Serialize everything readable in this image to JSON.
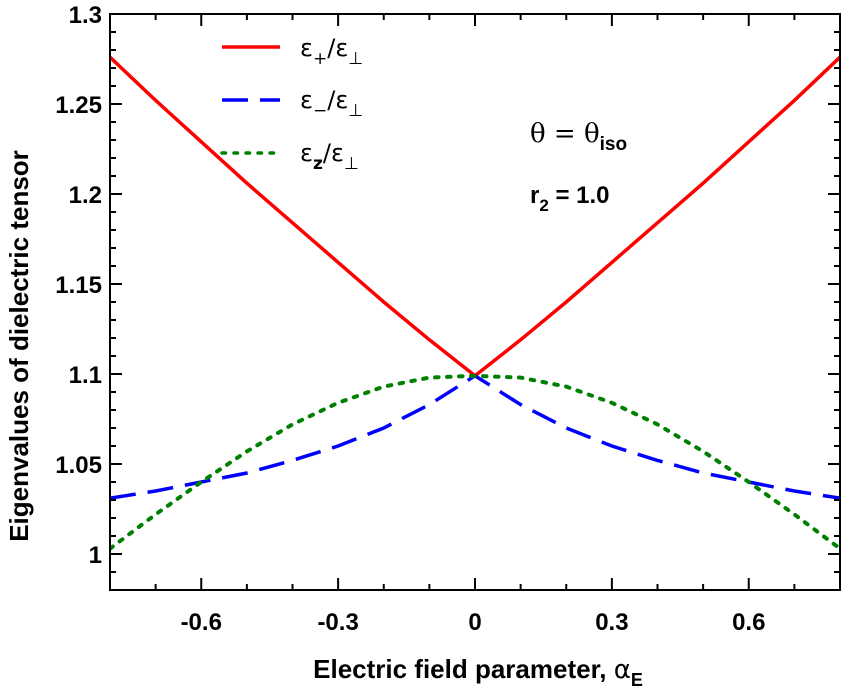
{
  "chart_data": {
    "type": "line",
    "title": "",
    "xlabel": "Electric field parameter, ",
    "xlabel_symbol": "α",
    "xlabel_sub": "E",
    "ylabel": "Eigenvalues of dielectric tensor",
    "xlim": [
      -0.8,
      0.8
    ],
    "ylim": [
      0.98,
      1.3
    ],
    "xticks": [
      -0.6,
      -0.3,
      0,
      0.3,
      0.6
    ],
    "xtick_labels": [
      "-0.6",
      "-0.3",
      "0",
      "0.3",
      "0.6"
    ],
    "yticks": [
      1.0,
      1.05,
      1.1,
      1.15,
      1.2,
      1.25,
      1.3
    ],
    "ytick_labels": [
      "1",
      "1.05",
      "1.1",
      "1.15",
      "1.2",
      "1.25",
      "1.3"
    ],
    "grid": false,
    "legend_position": "top-left",
    "series": [
      {
        "name": "ε+/ε⊥",
        "legend_base": "ε",
        "legend_sub": "+",
        "legend_rest": "/ε",
        "legend_sub2": "⊥",
        "color": "#ff0000",
        "style": "solid",
        "x": [
          -0.8,
          -0.7,
          -0.6,
          -0.5,
          -0.4,
          -0.3,
          -0.2,
          -0.1,
          0.0,
          0.1,
          0.2,
          0.3,
          0.4,
          0.5,
          0.6,
          0.7,
          0.8
        ],
        "y": [
          1.276,
          1.252,
          1.229,
          1.206,
          1.184,
          1.162,
          1.14,
          1.119,
          1.099,
          1.119,
          1.14,
          1.162,
          1.184,
          1.206,
          1.229,
          1.252,
          1.276
        ]
      },
      {
        "name": "ε−/ε⊥",
        "legend_base": "ε",
        "legend_sub": "−",
        "legend_rest": "/ε",
        "legend_sub2": "⊥",
        "color": "#0000ff",
        "style": "dashed",
        "x": [
          -0.8,
          -0.7,
          -0.6,
          -0.5,
          -0.4,
          -0.3,
          -0.2,
          -0.1,
          0.0,
          0.1,
          0.2,
          0.3,
          0.4,
          0.5,
          0.6,
          0.7,
          0.8
        ],
        "y": [
          1.031,
          1.035,
          1.04,
          1.045,
          1.052,
          1.06,
          1.07,
          1.083,
          1.099,
          1.083,
          1.07,
          1.06,
          1.052,
          1.045,
          1.04,
          1.035,
          1.031
        ]
      },
      {
        "name": "εz/ε⊥",
        "legend_base": "ε",
        "legend_sub": "z",
        "legend_rest": "/ε",
        "legend_sub2": "⊥",
        "color": "#008000",
        "style": "dotted",
        "x": [
          -0.8,
          -0.7,
          -0.6,
          -0.5,
          -0.4,
          -0.3,
          -0.2,
          -0.1,
          0.0,
          0.1,
          0.2,
          0.3,
          0.4,
          0.5,
          0.6,
          0.7,
          0.8
        ],
        "y": [
          1.003,
          1.022,
          1.04,
          1.057,
          1.072,
          1.084,
          1.093,
          1.098,
          1.099,
          1.098,
          1.093,
          1.084,
          1.072,
          1.057,
          1.04,
          1.022,
          1.003
        ]
      }
    ],
    "annotations": [
      {
        "id": "theta",
        "base": "θ = θ",
        "sub": "iso"
      },
      {
        "id": "r2",
        "base": "r",
        "sub": "2",
        "rest": " = 1.0"
      }
    ]
  }
}
